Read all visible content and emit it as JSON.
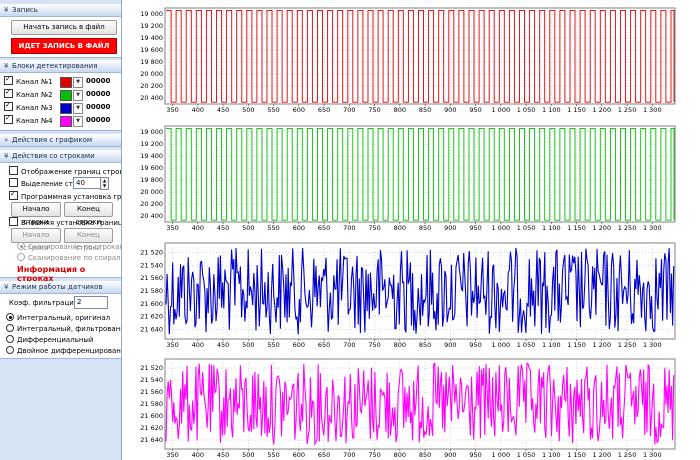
{
  "sidebar": {
    "record": {
      "title": "Запись",
      "start_button": "Начать запись в файл",
      "status_button": "ИДЕТ ЗАПИСЬ В ФАЙЛ"
    },
    "detection": {
      "title": "Блоки детектирования",
      "channels": [
        {
          "label": "Канал №1",
          "color": "#e00000",
          "count": "00000",
          "checked": true
        },
        {
          "label": "Канал №2",
          "color": "#00c000",
          "count": "00000",
          "checked": true
        },
        {
          "label": "Канал №3",
          "color": "#0000c8",
          "count": "00000",
          "checked": true
        },
        {
          "label": "Канал №4",
          "color": "#ff00ff",
          "count": "00000",
          "checked": true
        }
      ]
    },
    "graph_actions": {
      "title": "Действия с графиком"
    },
    "row_actions": {
      "title": "Действия со строками",
      "show_borders": "Отображение границ строк",
      "row_select": "Выделение строк",
      "row_select_value": "40",
      "program_borders": "Программная установка границ",
      "row_start": "Начало строки",
      "row_end": "Конец строки",
      "external_borders": "Внешняя установка границ",
      "row_start_2": "Начало строки",
      "row_end_2": "Конец строки",
      "scan_rows": "Сканирование по строкам",
      "scan_spiral": "Сканирование по спирали",
      "info": "Информация о строках"
    },
    "sensor_mode": {
      "title": "Режим работы датчиков",
      "filter_label": "Коэф. фильтрации",
      "filter_value": "2",
      "options": [
        "Интегральный, оригинал",
        "Интегральный, фильтрованный",
        "Дифференциальный",
        "Двойное дифференцирование"
      ],
      "selected": 0
    }
  },
  "chart_data": [
    {
      "type": "line",
      "title": "",
      "color": "#e00000",
      "x_ticks": [
        "350",
        "400",
        "450",
        "500",
        "550",
        "600",
        "650",
        "700",
        "750",
        "800",
        "850",
        "900",
        "950",
        "1 000",
        "1 050",
        "1 100",
        "1 150",
        "1 200",
        "1 250",
        "1 300"
      ],
      "y_ticks": [
        "19 000",
        "19 200",
        "19 400",
        "19 600",
        "19 800",
        "20 000",
        "20 200",
        "20 400"
      ],
      "xlim": [
        335,
        1345
      ],
      "ylim": [
        18900,
        20500
      ],
      "y_inverted": true,
      "pattern": "square wave",
      "y_levels": [
        18940,
        20470
      ],
      "period": 20
    },
    {
      "type": "line",
      "title": "",
      "color": "#00c000",
      "x_ticks": [
        "350",
        "400",
        "450",
        "500",
        "550",
        "600",
        "650",
        "700",
        "750",
        "800",
        "850",
        "900",
        "950",
        "1 000",
        "1 050",
        "1 100",
        "1 150",
        "1 200",
        "1 250",
        "1 300"
      ],
      "y_ticks": [
        "19 000",
        "19 200",
        "19 400",
        "19 600",
        "19 800",
        "20 000",
        "20 200",
        "20 400"
      ],
      "xlim": [
        335,
        1345
      ],
      "ylim": [
        18900,
        20500
      ],
      "y_inverted": true,
      "pattern": "square wave",
      "y_levels": [
        18940,
        20470
      ],
      "period": 20
    },
    {
      "type": "line",
      "title": "",
      "color": "#0000c8",
      "x_ticks": [
        "350",
        "400",
        "450",
        "500",
        "550",
        "600",
        "650",
        "700",
        "750",
        "800",
        "850",
        "900",
        "950",
        "1 000",
        "1 050",
        "1 100",
        "1 150",
        "1 200",
        "1 250",
        "1 300"
      ],
      "y_ticks": [
        "21 520",
        "21 540",
        "21 560",
        "21 580",
        "21 600",
        "21 620",
        "21 640"
      ],
      "xlim": [
        335,
        1345
      ],
      "ylim": [
        21505,
        21655
      ],
      "y_inverted": true,
      "pattern": "noise",
      "y_range": [
        21512,
        21648
      ]
    },
    {
      "type": "line",
      "title": "",
      "color": "#ff00ff",
      "x_ticks": [
        "350",
        "400",
        "450",
        "500",
        "550",
        "600",
        "650",
        "700",
        "750",
        "800",
        "850",
        "900",
        "950",
        "1 000",
        "1 050",
        "1 100",
        "1 150",
        "1 200",
        "1 250",
        "1 300"
      ],
      "y_ticks": [
        "21 520",
        "21 540",
        "21 560",
        "21 580",
        "21 600",
        "21 620",
        "21 640"
      ],
      "xlim": [
        335,
        1345
      ],
      "ylim": [
        21505,
        21655
      ],
      "y_inverted": true,
      "pattern": "noise",
      "y_range": [
        21512,
        21648
      ]
    }
  ]
}
